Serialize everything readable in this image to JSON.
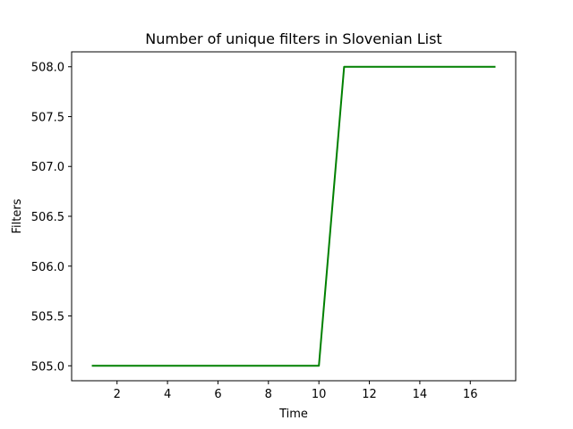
{
  "chart_data": {
    "type": "line",
    "title": "Number of unique filters in Slovenian List",
    "xlabel": "Time",
    "ylabel": "Filters",
    "xlim": [
      0.2,
      17.8
    ],
    "ylim": [
      504.85,
      508.15
    ],
    "xticks": [
      2,
      4,
      6,
      8,
      10,
      12,
      14,
      16
    ],
    "yticks": [
      505.0,
      505.5,
      506.0,
      506.5,
      507.0,
      507.5,
      508.0
    ],
    "grid": false,
    "legend": "none",
    "series": [
      {
        "color": "#008000",
        "x": [
          1,
          2,
          3,
          4,
          5,
          6,
          7,
          8,
          9,
          10,
          11,
          12,
          13,
          14,
          15,
          16,
          17
        ],
        "y": [
          505,
          505,
          505,
          505,
          505,
          505,
          505,
          505,
          505,
          505,
          508,
          508,
          508,
          508,
          508,
          508,
          508
        ]
      }
    ]
  }
}
